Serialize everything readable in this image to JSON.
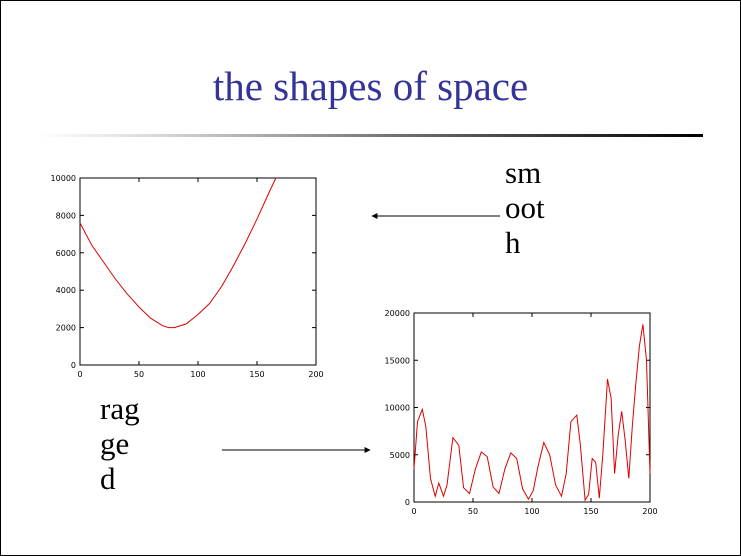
{
  "slide": {
    "title": "the shapes of space",
    "smooth_label": [
      "sm",
      "oot",
      "h"
    ],
    "ragged_label": [
      "rag",
      "ge",
      "d"
    ],
    "title_color": "#333399",
    "curve_color": "#dd0000"
  },
  "chart_data": [
    {
      "type": "line",
      "name": "smooth",
      "xlim": [
        0,
        200
      ],
      "ylim": [
        0,
        10000
      ],
      "xticks": [
        0,
        50,
        100,
        150,
        200
      ],
      "yticks": [
        0,
        2000,
        4000,
        6000,
        8000,
        10000
      ],
      "xticklabels": [
        "0",
        "50",
        "100",
        "150",
        "200"
      ],
      "yticklabels": [
        "0",
        "2000",
        "4000",
        "6000",
        "8000",
        "10000"
      ],
      "series": [
        {
          "x": [
            0,
            10,
            20,
            30,
            40,
            50,
            60,
            70,
            75,
            80,
            90,
            100,
            110,
            120,
            130,
            140,
            150,
            160,
            166
          ],
          "y": [
            7600,
            6400,
            5500,
            4600,
            3800,
            3100,
            2500,
            2100,
            2000,
            2000,
            2200,
            2700,
            3300,
            4200,
            5300,
            6500,
            7800,
            9200,
            10000
          ]
        }
      ]
    },
    {
      "type": "line",
      "name": "ragged",
      "xlim": [
        0,
        200
      ],
      "ylim": [
        0,
        20000
      ],
      "xticks": [
        0,
        50,
        100,
        150,
        200
      ],
      "yticks": [
        0,
        5000,
        10000,
        15000,
        20000
      ],
      "xticklabels": [
        "0",
        "50",
        "100",
        "150",
        "200"
      ],
      "yticklabels": [
        "0",
        "5000",
        "10000",
        "15000",
        "20000"
      ],
      "series": [
        {
          "x": [
            0,
            3,
            7,
            10,
            14,
            18,
            21,
            25,
            28,
            33,
            38,
            42,
            47,
            52,
            57,
            62,
            67,
            72,
            77,
            82,
            87,
            92,
            97,
            101,
            105,
            110,
            115,
            120,
            125,
            129,
            133,
            138,
            141,
            145,
            148,
            151,
            154,
            157,
            160,
            164,
            167,
            170,
            173,
            176,
            179,
            182,
            185,
            188,
            191,
            194,
            197,
            200
          ],
          "y": [
            3500,
            8500,
            9800,
            8000,
            2500,
            600,
            2000,
            600,
            1800,
            6800,
            6000,
            1500,
            900,
            3500,
            5300,
            4800,
            1600,
            900,
            3500,
            5200,
            4600,
            1400,
            300,
            1200,
            3700,
            6300,
            5000,
            1800,
            600,
            3000,
            8500,
            9200,
            6000,
            200,
            800,
            4600,
            4200,
            400,
            5000,
            13000,
            11000,
            3000,
            7000,
            9600,
            6500,
            2500,
            8000,
            12500,
            16500,
            18800,
            15000,
            3000
          ]
        }
      ]
    }
  ]
}
